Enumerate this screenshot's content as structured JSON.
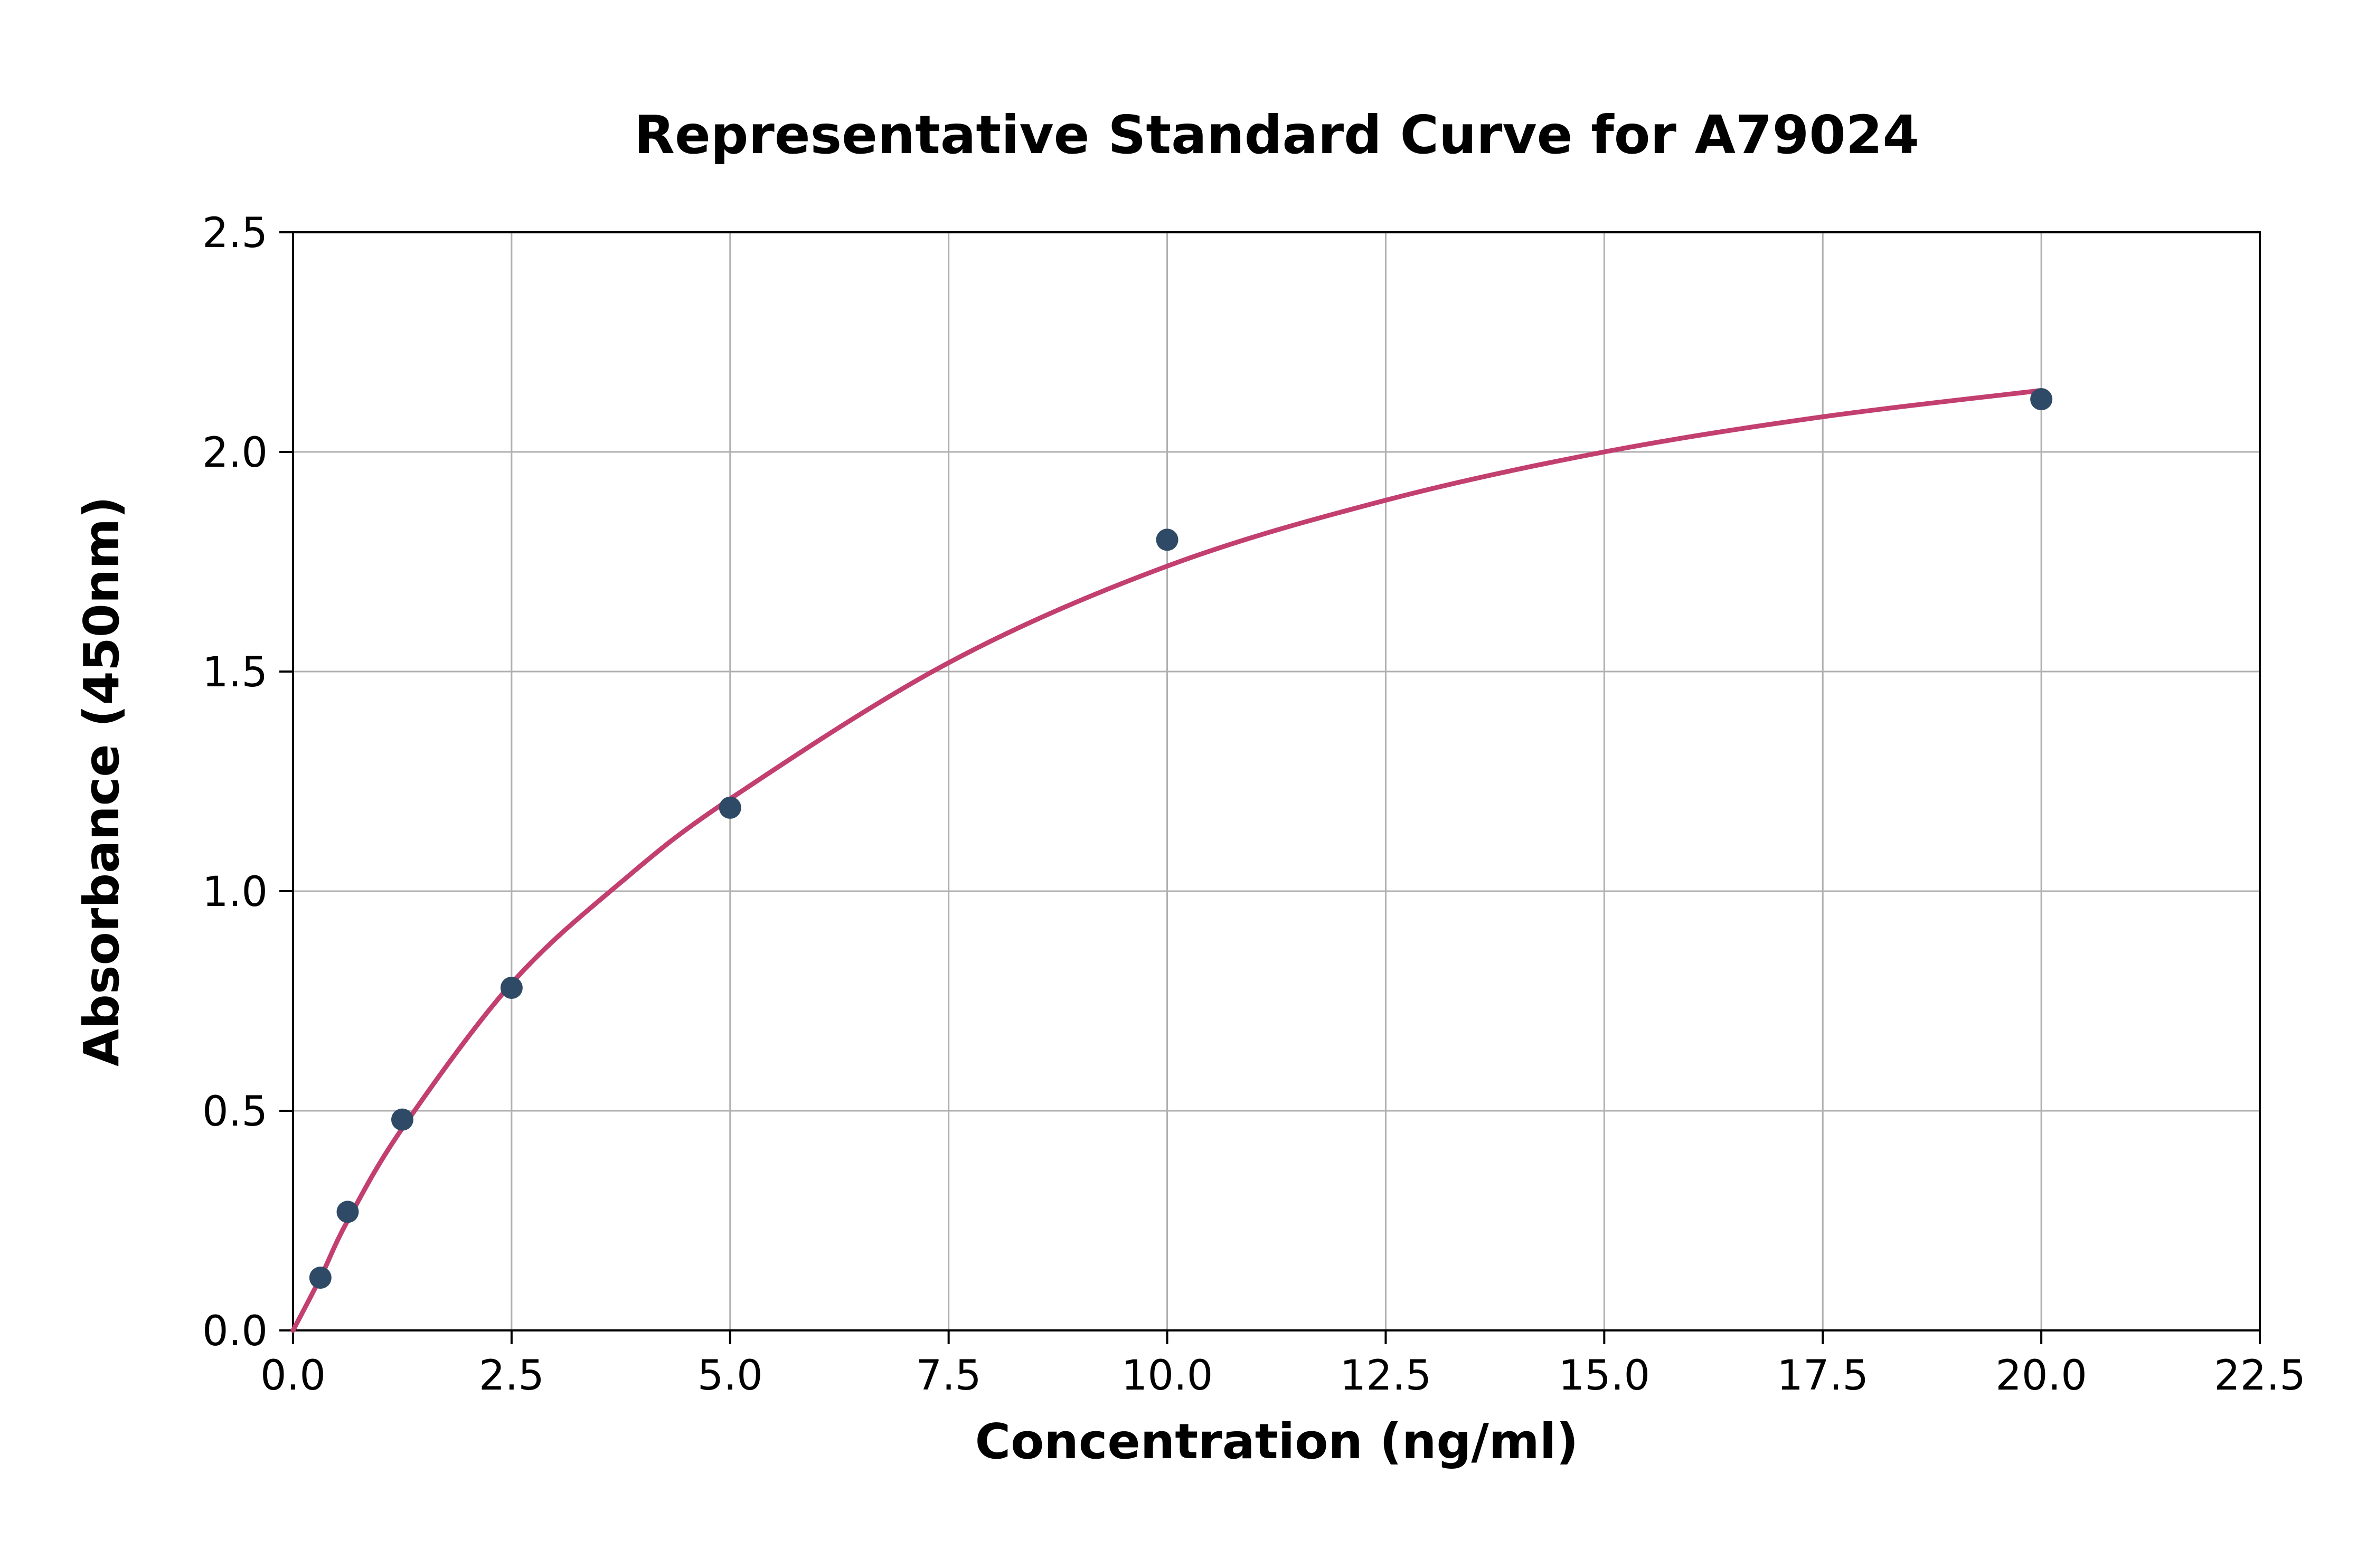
{
  "chart_data": {
    "type": "scatter",
    "title": "Representative Standard Curve for A79024",
    "xlabel": "Concentration (ng/ml)",
    "ylabel": "Absorbance (450nm)",
    "xlim": [
      0,
      22.5
    ],
    "ylim": [
      0,
      2.5
    ],
    "grid": true,
    "legend": "none",
    "x_ticks": [
      0.0,
      2.5,
      5.0,
      7.5,
      10.0,
      12.5,
      15.0,
      17.5,
      20.0,
      22.5
    ],
    "x_tick_labels": [
      "0.0",
      "2.5",
      "5.0",
      "7.5",
      "10.0",
      "12.5",
      "15.0",
      "17.5",
      "20.0",
      "22.5"
    ],
    "y_ticks": [
      0.0,
      0.5,
      1.0,
      1.5,
      2.0,
      2.5
    ],
    "y_tick_labels": [
      "0.0",
      "0.5",
      "1.0",
      "1.5",
      "2.0",
      "2.5"
    ],
    "points": {
      "x": [
        0.313,
        0.625,
        1.25,
        2.5,
        5.0,
        10.0,
        20.0
      ],
      "y": [
        0.12,
        0.27,
        0.48,
        0.78,
        1.19,
        1.8,
        2.12
      ]
    },
    "fit_curve": {
      "x": [
        0.0,
        0.313,
        0.625,
        1.25,
        2.5,
        3.75,
        5.0,
        7.5,
        10.0,
        12.5,
        15.0,
        17.5,
        20.0
      ],
      "y": [
        0.0,
        0.12,
        0.25,
        0.46,
        0.79,
        1.02,
        1.21,
        1.52,
        1.74,
        1.89,
        2.0,
        2.08,
        2.14
      ]
    },
    "colors": {
      "point": "#2e4a66",
      "curve": "#c23f6f",
      "grid": "#b0b0b0",
      "spine": "#000000",
      "text": "#000000",
      "background": "#ffffff"
    }
  }
}
